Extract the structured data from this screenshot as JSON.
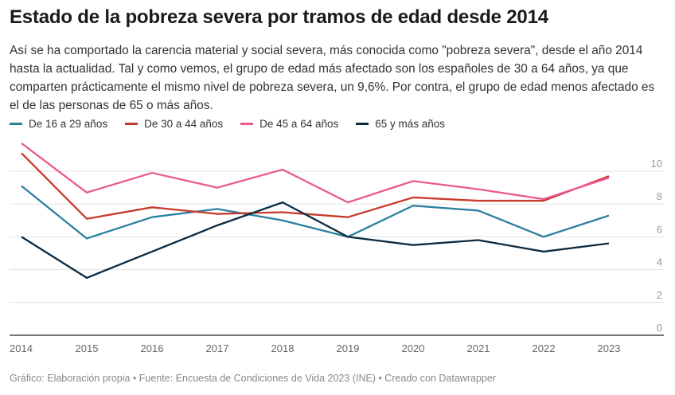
{
  "title": "Estado de la pobreza severa por tramos de edad desde 2014",
  "description": "Así se ha comportado la carencia material y social severa, más conocida como \"pobreza severa\", desde el año 2014 hasta la actualidad. Tal y como vemos, el grupo de edad más afectado son los españoles de 30 a 64 años, ya que comparten prácticamente el mismo nivel de pobreza severa, un 9,6%. Por contra, el grupo de edad menos afectado es el de las personas de 65 o más años.",
  "footer": "Gráfico: Elaboración propia • Fuente: Encuesta de Condiciones de Vida 2023 (INE) • Creado con Datawrapper",
  "chart_data": {
    "type": "line",
    "x": [
      "2014",
      "2015",
      "2016",
      "2017",
      "2018",
      "2019",
      "2020",
      "2021",
      "2022",
      "2023"
    ],
    "ylim": [
      0,
      10
    ],
    "yticks": [
      "0",
      "2",
      "4",
      "6",
      "8",
      "10"
    ],
    "grid": true,
    "legend_placement": "top-left",
    "series": [
      {
        "name": "De 16 a 29 años",
        "color": "#2a80a0",
        "values": [
          9.1,
          5.9,
          7.2,
          7.7,
          7.0,
          6.0,
          7.9,
          7.6,
          6.0,
          7.3
        ]
      },
      {
        "name": "De 30 a 44 años",
        "color": "#c93a2e",
        "values": [
          11.1,
          7.1,
          7.8,
          7.4,
          7.5,
          7.2,
          8.4,
          8.2,
          8.2,
          9.7
        ]
      },
      {
        "name": "De 45 a 64 años",
        "color": "#ea5a8e",
        "values": [
          11.7,
          8.7,
          9.9,
          9.0,
          10.1,
          8.1,
          9.4,
          8.9,
          8.3,
          9.6
        ]
      },
      {
        "name": "65 y más años",
        "color": "#0c2b42",
        "values": [
          6.0,
          3.5,
          5.1,
          6.7,
          8.1,
          6.0,
          5.5,
          5.8,
          5.1,
          5.6
        ]
      }
    ]
  }
}
